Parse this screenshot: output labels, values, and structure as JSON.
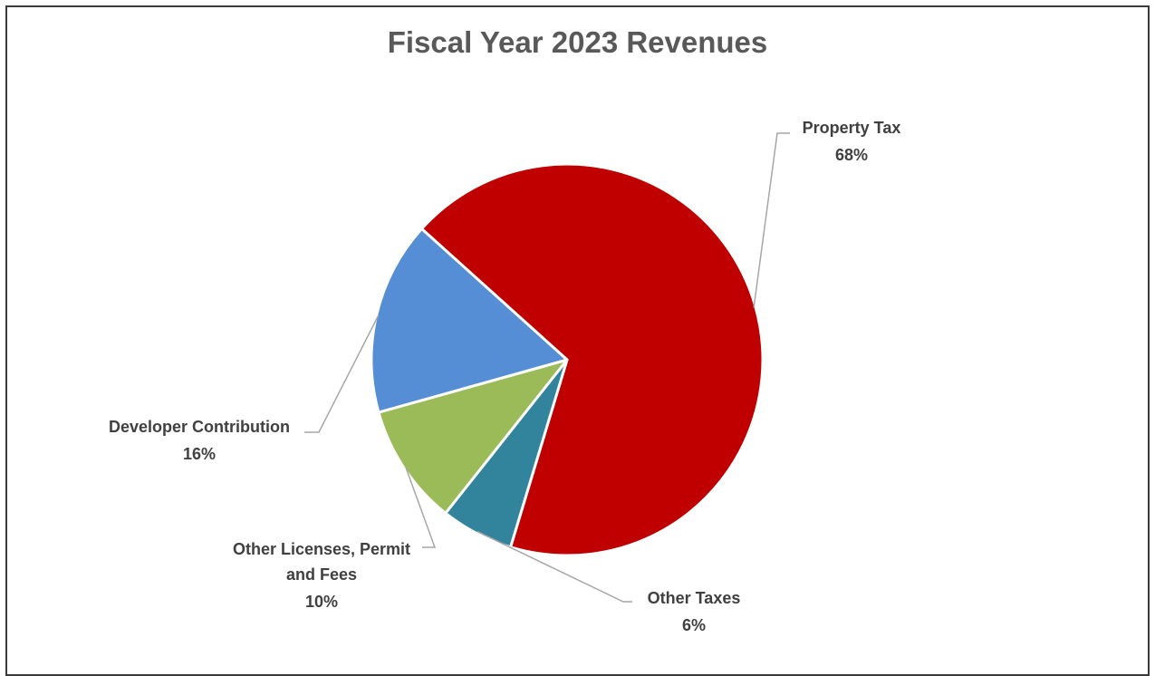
{
  "chart_data": {
    "type": "pie",
    "title": "Fiscal Year 2023 Revenues",
    "slices": [
      {
        "label": "Property Tax",
        "value": 68,
        "display": "68%",
        "color": "#C00000"
      },
      {
        "label": "Other Taxes",
        "value": 6,
        "display": "6%",
        "color": "#31849B"
      },
      {
        "label_lines": [
          "Other Licenses, Permit",
          "and Fees"
        ],
        "value": 10,
        "display": "10%",
        "color": "#9BBB59"
      },
      {
        "label": "Developer Contribution",
        "value": 16,
        "display": "16%",
        "color": "#558ED5"
      }
    ],
    "legend": "none",
    "data_labels": "outside-with-leader-lines"
  }
}
